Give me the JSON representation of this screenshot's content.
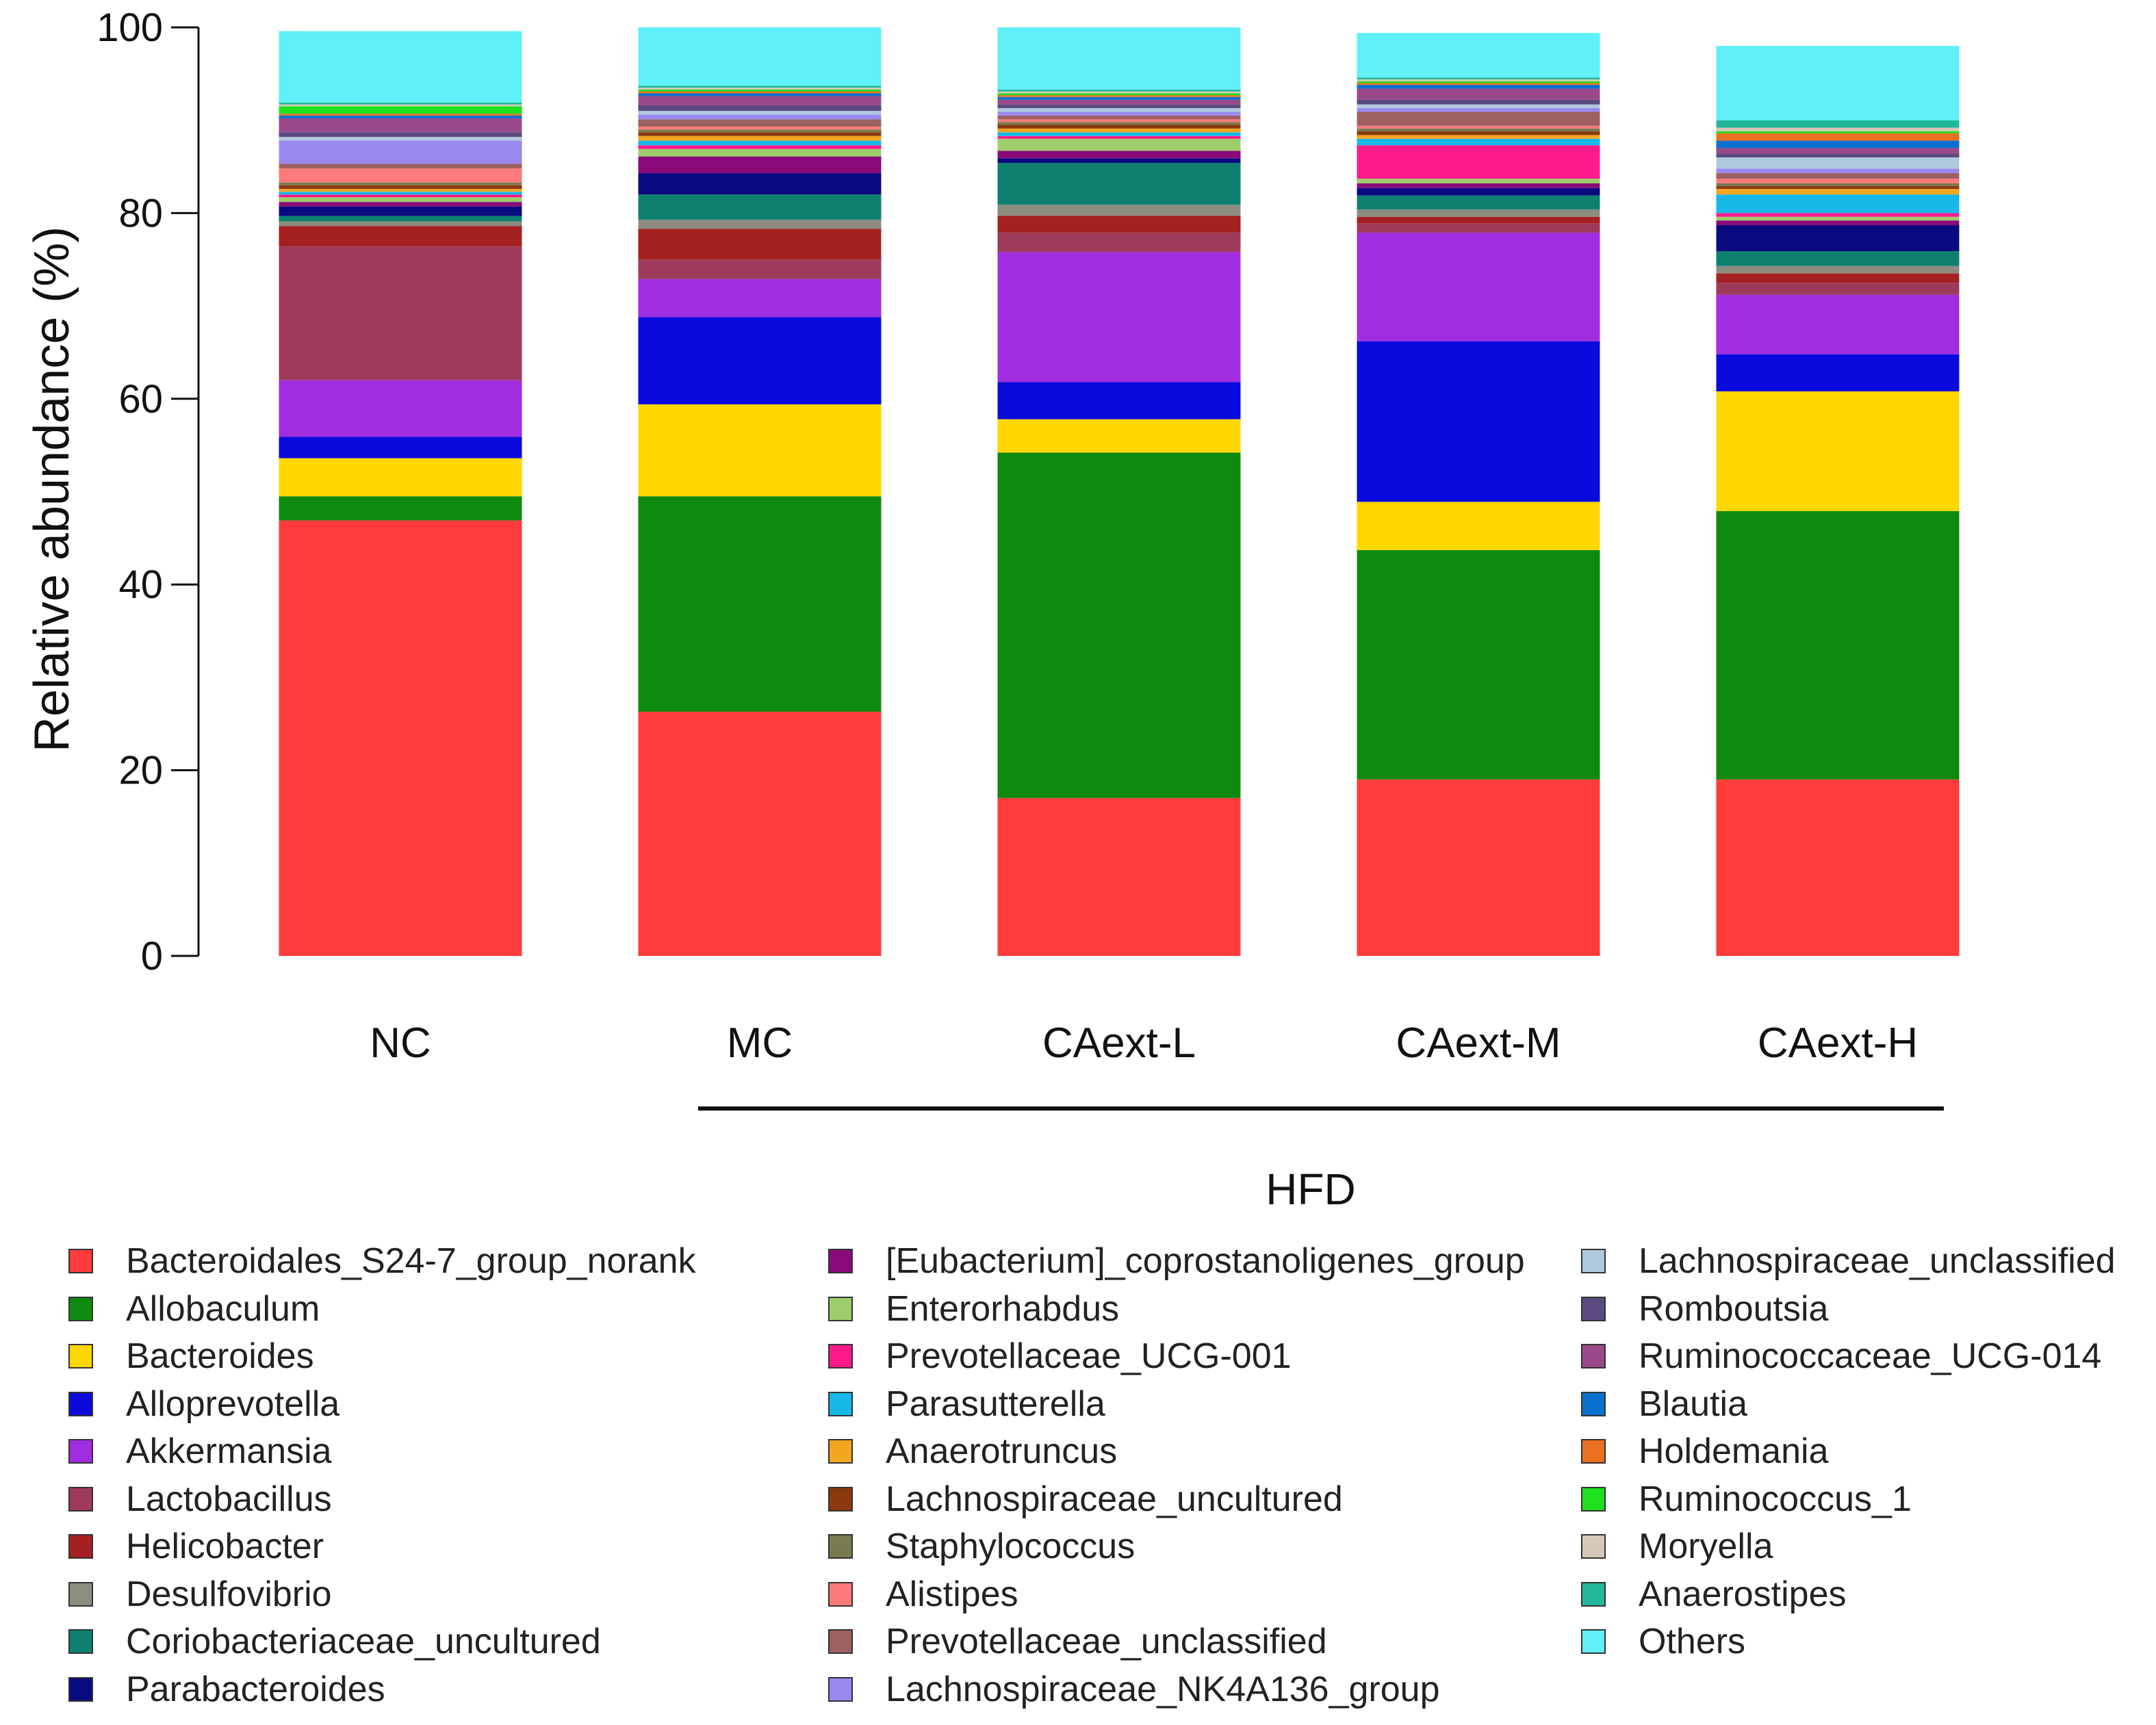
{
  "chart_data": {
    "type": "bar",
    "stacked": true,
    "title": "",
    "xlabel": "",
    "ylabel": "Relative abundance (%)",
    "ylim": [
      0,
      100
    ],
    "yticks": [
      "0",
      "20",
      "40",
      "60",
      "80",
      "100"
    ],
    "categories": [
      "NC",
      "MC",
      "CAext-L",
      "CAext-M",
      "CAext-H"
    ],
    "group_annotation": {
      "label": "HFD",
      "covers": [
        "MC",
        "CAext-L",
        "CAext-M",
        "CAext-H"
      ]
    },
    "series": [
      {
        "name": "Bacteroidales_S24-7_group_norank",
        "color": "#FF3B3B",
        "values": [
          46.9,
          26.3,
          17.0,
          19.0,
          19.0
        ]
      },
      {
        "name": "Allobaculum",
        "color": "#0E8A0E",
        "values": [
          2.6,
          23.2,
          37.2,
          24.7,
          28.9
        ]
      },
      {
        "name": "Bacteroides",
        "color": "#FFD700",
        "values": [
          4.1,
          9.9,
          3.6,
          5.2,
          12.9
        ]
      },
      {
        "name": "Alloprevotella",
        "color": "#0A0ADC",
        "values": [
          2.3,
          9.4,
          4.0,
          17.3,
          4.0
        ]
      },
      {
        "name": "Akkermansia",
        "color": "#A02DE0",
        "values": [
          6.1,
          4.1,
          14.0,
          11.7,
          6.4
        ]
      },
      {
        "name": "Lactobacillus",
        "color": "#9E3A5A",
        "values": [
          14.4,
          2.1,
          2.1,
          1.0,
          1.3
        ]
      },
      {
        "name": "Helicobacter",
        "color": "#A52020",
        "values": [
          2.2,
          3.3,
          1.8,
          0.7,
          1.0
        ]
      },
      {
        "name": "Desulfovibrio",
        "color": "#8C8C80",
        "values": [
          0.5,
          1.0,
          1.2,
          0.8,
          0.8
        ]
      },
      {
        "name": "Coriobacteriaceae_uncultured",
        "color": "#0E8070",
        "values": [
          0.6,
          2.7,
          4.5,
          1.5,
          1.6
        ]
      },
      {
        "name": "Parabacteroides",
        "color": "#0A0A80",
        "values": [
          1.0,
          2.3,
          0.5,
          0.8,
          2.8
        ]
      },
      {
        "name": "[Eubacterium]_coprostanoligenes_group",
        "color": "#8A0A7A",
        "values": [
          0.5,
          1.8,
          0.8,
          0.5,
          0.5
        ]
      },
      {
        "name": "Enterorhabdus",
        "color": "#9FCC6A",
        "values": [
          0.5,
          0.8,
          1.3,
          0.5,
          0.4
        ]
      },
      {
        "name": "Prevotellaceae_UCG-001",
        "color": "#FF1A8C",
        "values": [
          0.3,
          0.4,
          0.3,
          3.6,
          0.4
        ]
      },
      {
        "name": "Parasutterella",
        "color": "#16B8E8",
        "values": [
          0.3,
          0.5,
          0.4,
          0.7,
          2.0
        ]
      },
      {
        "name": "Anaerotruncus",
        "color": "#F2A71E",
        "values": [
          0.3,
          0.5,
          0.4,
          0.4,
          0.6
        ]
      },
      {
        "name": "Lachnospiraceae_uncultured",
        "color": "#8B3A10",
        "values": [
          0.4,
          0.4,
          0.4,
          0.4,
          0.3
        ]
      },
      {
        "name": "Staphylococcus",
        "color": "#7A7A50",
        "values": [
          0.3,
          0.3,
          0.3,
          0.3,
          0.3
        ]
      },
      {
        "name": "Alistipes",
        "color": "#FF7A7A",
        "values": [
          1.5,
          0.3,
          0.3,
          0.3,
          0.5
        ]
      },
      {
        "name": "Prevotellaceae_unclassified",
        "color": "#9E6060",
        "values": [
          0.5,
          0.8,
          0.4,
          1.5,
          0.6
        ]
      },
      {
        "name": "Lachnospiraceae_NK4A136_group",
        "color": "#9A8AF0",
        "values": [
          2.5,
          0.5,
          0.4,
          0.4,
          0.5
        ]
      },
      {
        "name": "Lachnospiraceae_unclassified",
        "color": "#B0C8DC",
        "values": [
          0.4,
          0.4,
          0.4,
          0.4,
          1.2
        ]
      },
      {
        "name": "Romboutsia",
        "color": "#5A4A80",
        "values": [
          0.5,
          0.6,
          0.4,
          0.5,
          0.4
        ]
      },
      {
        "name": "Ruminococcaceae_UCG-014",
        "color": "#9A4A8A",
        "values": [
          1.5,
          1.0,
          0.5,
          1.2,
          0.6
        ]
      },
      {
        "name": "Blautia",
        "color": "#0A70D0",
        "values": [
          0.3,
          0.3,
          0.3,
          0.4,
          0.8
        ]
      },
      {
        "name": "Holdemania",
        "color": "#E87020",
        "values": [
          0.2,
          0.2,
          0.2,
          0.2,
          0.8
        ]
      },
      {
        "name": "Ruminococcus_1",
        "color": "#1EE01E",
        "values": [
          0.8,
          0.2,
          0.2,
          0.2,
          0.2
        ]
      },
      {
        "name": "Moryella",
        "color": "#D6C8B8",
        "values": [
          0.2,
          0.2,
          0.2,
          0.2,
          0.4
        ]
      },
      {
        "name": "Anaerostipes",
        "color": "#20B898",
        "values": [
          0.2,
          0.2,
          0.2,
          0.2,
          0.8
        ]
      },
      {
        "name": "Others",
        "color": "#60F0F8",
        "values": [
          7.7,
          6.3,
          6.7,
          4.8,
          8.0
        ]
      }
    ],
    "legend": {
      "placement": "bottom",
      "columns": 3,
      "order": "column-major"
    }
  }
}
